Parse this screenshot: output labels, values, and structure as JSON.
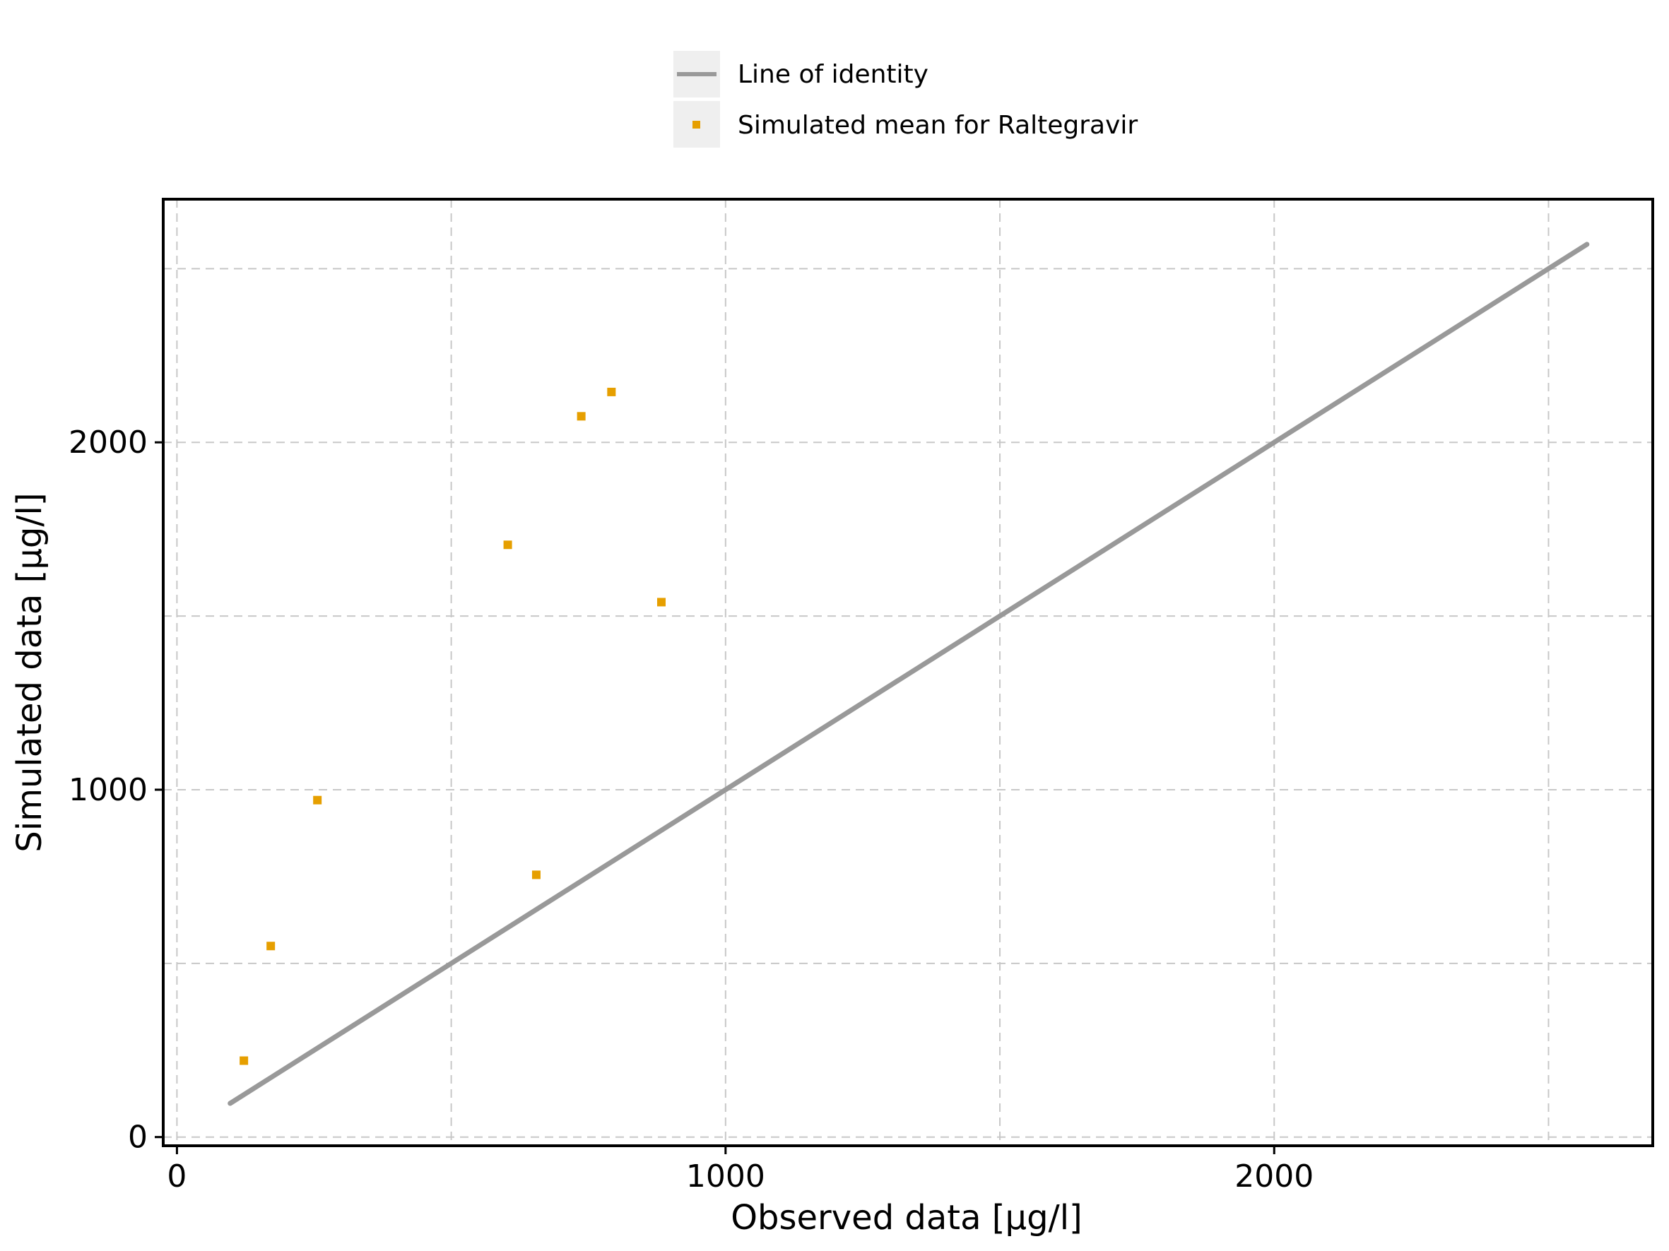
{
  "chart_data": {
    "type": "scatter",
    "xlabel": "Observed data [µg/l]",
    "ylabel": "Simulated data [µg/l]",
    "xlim": [
      -25,
      2690
    ],
    "ylim": [
      -25,
      2700
    ],
    "x_ticks": [
      0,
      1000,
      2000
    ],
    "y_ticks": [
      0,
      1000,
      2000
    ],
    "x_tick_labels": [
      "0",
      "1000",
      "2000"
    ],
    "y_tick_labels": [
      "0",
      "1000",
      "2000"
    ],
    "minor_grid_x": [
      500,
      1500,
      2500
    ],
    "minor_grid_y": [
      500,
      1500,
      2500
    ],
    "grid": true,
    "legend_position": "top-center",
    "series": [
      {
        "name": "Line of identity",
        "type": "line",
        "color": "#999999",
        "x": [
          97,
          2570
        ],
        "y": [
          97,
          2570
        ]
      },
      {
        "name": "Simulated mean for Raltegravir",
        "type": "scatter",
        "marker": "square",
        "color": "#E69F00",
        "x": [
          122,
          171,
          256,
          603,
          655,
          737,
          792,
          883
        ],
        "y": [
          220,
          550,
          970,
          1705,
          755,
          2075,
          2145,
          1540
        ]
      }
    ]
  }
}
